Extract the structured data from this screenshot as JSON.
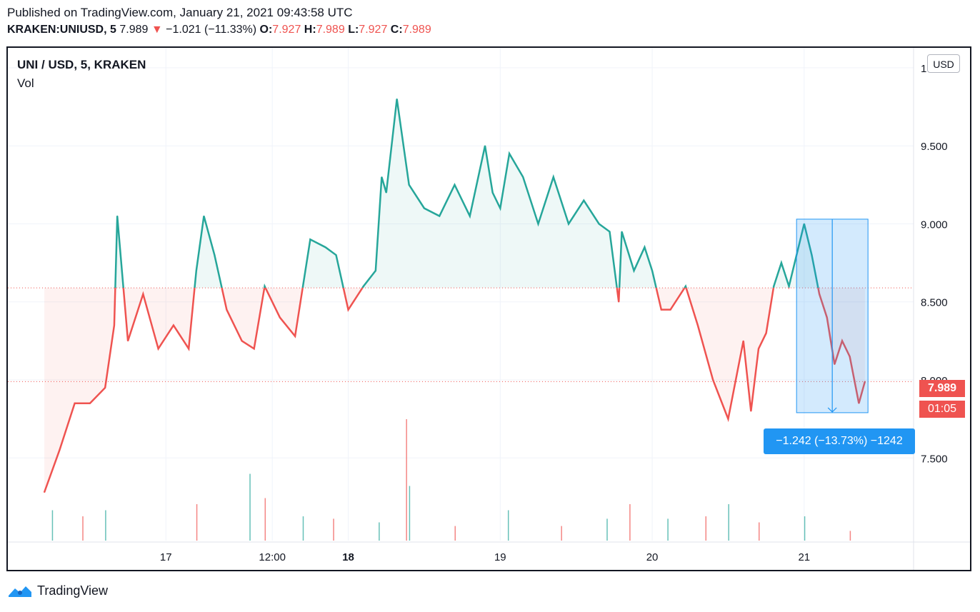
{
  "header": {
    "published": "Published on TradingView.com, January 21, 2021 09:43:58 UTC",
    "symbol": "KRAKEN:UNIUSD, 5",
    "last": "7.989",
    "arrow": "▼",
    "change": "−1.021 (−11.33%)",
    "o_label": "O:",
    "o_value": "7.927",
    "h_label": "H:",
    "h_value": "7.989",
    "l_label": "L:",
    "l_value": "7.927",
    "c_label": "C:",
    "c_value": "7.989"
  },
  "legend": {
    "title": "UNI / USD, 5, KRAKEN",
    "vol_label": "Vol"
  },
  "price_scale": {
    "unit_button": "USD"
  },
  "last_price_tag": {
    "price": "7.989",
    "countdown": "01:05"
  },
  "measure": {
    "label": "−1.242 (−13.73%) −1242"
  },
  "footer": {
    "brand": "TradingView"
  },
  "colors": {
    "up": "#26a69a",
    "down": "#ef5350",
    "measure": "#2196f3"
  },
  "chart_data": {
    "type": "area",
    "baseline": 8.59,
    "last_price": 7.989,
    "ylim": [
      7.03,
      10.05
    ],
    "y_ticks": [
      "7.500",
      "8.000",
      "8.500",
      "9.000",
      "9.500",
      "10.000"
    ],
    "x": [
      16.0,
      16.1,
      16.2,
      16.3,
      16.4,
      16.46,
      16.48,
      16.55,
      16.65,
      16.75,
      16.85,
      16.95,
      17.0,
      17.05,
      17.12,
      17.2,
      17.3,
      17.38,
      17.45,
      17.55,
      17.65,
      17.75,
      17.85,
      17.92,
      18.0,
      18.1,
      18.18,
      18.22,
      18.25,
      18.32,
      18.4,
      18.5,
      18.6,
      18.7,
      18.8,
      18.9,
      18.95,
      19.0,
      19.06,
      19.15,
      19.25,
      19.35,
      19.45,
      19.55,
      19.65,
      19.72,
      19.78,
      19.8,
      19.88,
      19.95,
      20.0,
      20.06,
      20.12,
      20.22,
      20.3,
      20.4,
      20.5,
      20.55,
      20.6,
      20.65,
      20.7,
      20.75,
      20.8,
      20.85,
      20.9,
      20.95,
      21.0,
      21.05,
      21.1,
      21.15,
      21.2,
      21.25,
      21.3,
      21.36,
      21.4
    ],
    "values": [
      7.28,
      7.55,
      7.85,
      7.85,
      7.95,
      8.35,
      9.05,
      8.25,
      8.55,
      8.2,
      8.35,
      8.2,
      8.7,
      9.05,
      8.8,
      8.45,
      8.25,
      8.2,
      8.6,
      8.4,
      8.28,
      8.9,
      8.85,
      8.8,
      8.45,
      8.6,
      8.7,
      9.3,
      9.2,
      9.8,
      9.25,
      9.1,
      9.05,
      9.25,
      9.05,
      9.5,
      9.2,
      9.1,
      9.45,
      9.3,
      9.0,
      9.3,
      9.0,
      9.15,
      9.0,
      8.95,
      8.5,
      8.95,
      8.7,
      8.85,
      8.7,
      8.45,
      8.45,
      8.6,
      8.35,
      8.0,
      7.75,
      8.0,
      8.25,
      7.8,
      8.2,
      8.3,
      8.6,
      8.75,
      8.6,
      8.8,
      9.0,
      8.8,
      8.55,
      8.4,
      8.1,
      8.25,
      8.15,
      7.85,
      7.99
    ],
    "x_labels": [
      {
        "x": 16.8,
        "label": "17",
        "bold": false
      },
      {
        "x": 17.5,
        "label": "12:00",
        "bold": false
      },
      {
        "x": 18.0,
        "label": "18",
        "bold": true
      },
      {
        "x": 19.0,
        "label": "19",
        "bold": false
      },
      {
        "x": 20.0,
        "label": "20",
        "bold": false
      },
      {
        "x": 21.0,
        "label": "21",
        "bold": false
      }
    ],
    "volume": {
      "x": [
        16.05,
        16.25,
        16.4,
        17.0,
        17.35,
        17.45,
        17.7,
        17.9,
        18.2,
        18.38,
        18.4,
        18.7,
        19.05,
        19.4,
        19.7,
        19.85,
        20.1,
        20.35,
        20.5,
        20.7,
        21.0,
        21.3
      ],
      "values": [
        0.25,
        0.2,
        0.25,
        0.3,
        0.55,
        0.35,
        0.2,
        0.18,
        0.15,
        1.0,
        0.45,
        0.12,
        0.25,
        0.12,
        0.18,
        0.3,
        0.18,
        0.2,
        0.3,
        0.15,
        0.2,
        0.08
      ]
    },
    "measure_range": {
      "x_start": 20.95,
      "x_end": 21.42,
      "y_top": 9.03,
      "y_bottom": 7.79
    }
  }
}
